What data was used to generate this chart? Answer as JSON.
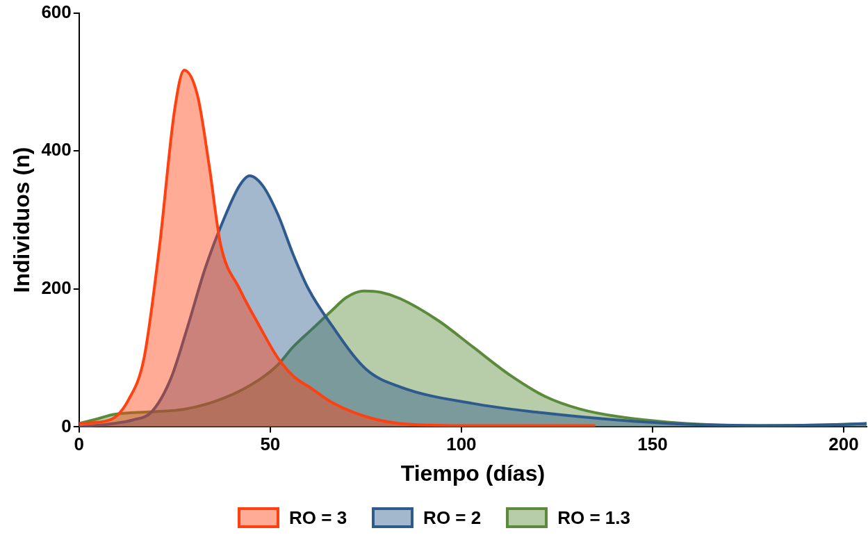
{
  "chart_data": {
    "type": "area",
    "xlabel": "Tiempo (días)",
    "ylabel": "Individuos (n)",
    "xlim": [
      0,
      206
    ],
    "ylim": [
      0,
      600
    ],
    "xticks": [
      0,
      50,
      100,
      150,
      200
    ],
    "yticks": [
      0,
      200,
      400,
      600
    ],
    "grid": false,
    "legend": "bottom",
    "marker": "none",
    "line_style": "solid",
    "series": [
      {
        "name": "RO = 3",
        "color": "#ff4010",
        "x": [
          0,
          8,
          13,
          17,
          21,
          25,
          27.5,
          31,
          34,
          37,
          42,
          47,
          52,
          56,
          61,
          66,
          75,
          84,
          100,
          120,
          135
        ],
        "values": [
          5,
          10,
          40,
          100,
          260,
          460,
          517,
          480,
          380,
          265,
          200,
          148,
          100,
          74,
          55,
          36,
          15,
          5,
          2,
          2,
          2
        ]
      },
      {
        "name": "RO = 2",
        "color": "#2e5a8e",
        "x": [
          0,
          9,
          14,
          19,
          24,
          28,
          33,
          38,
          42,
          44.6,
          48,
          52,
          56,
          60,
          66,
          75,
          84,
          103,
          122,
          141,
          159,
          178,
          195,
          206
        ],
        "values": [
          0,
          5,
          10,
          22,
          70,
          138,
          230,
          303,
          350,
          364,
          350,
          308,
          250,
          200,
          148,
          84,
          58,
          34,
          20,
          10,
          4,
          2,
          3,
          5
        ]
      },
      {
        "name": "RO = 1.3",
        "color": "#5a8a3a",
        "x": [
          0,
          5,
          9,
          19,
          28,
          38,
          47,
          52,
          56,
          61,
          66,
          70,
          74.6,
          79,
          84,
          94,
          103,
          113,
          122,
          131,
          141,
          159,
          178,
          195,
          206
        ],
        "values": [
          5,
          12,
          18,
          22,
          26,
          42,
          68,
          90,
          116,
          142,
          168,
          188,
          197,
          195,
          186,
          154,
          116,
          74,
          44,
          26,
          15,
          5,
          2,
          3,
          5
        ]
      }
    ]
  }
}
